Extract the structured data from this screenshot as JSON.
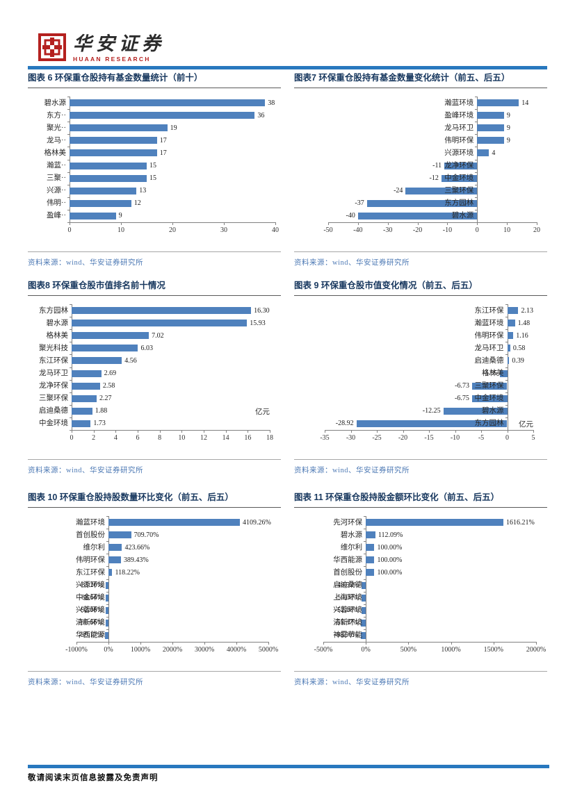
{
  "header": {
    "brand_cn": "华安证券",
    "brand_en": "HUAAN RESEARCH"
  },
  "colors": {
    "accent_bar": "#2878BE",
    "bar_fill": "#4F81BD",
    "title_text": "#17375E",
    "source_text": "#4E7AB5",
    "logo_red": "#B4211F"
  },
  "footer": {
    "disclaimer": "敬请阅读末页信息披露及免责声明"
  },
  "chart_data": [
    {
      "type": "bar",
      "title": "图表 6 环保重仓股持有基金数量统计（前十）",
      "source": "资料来源：wind、华安证券研究所",
      "categories": [
        "碧水源",
        "东方··",
        "聚光··",
        "龙马··",
        "格林美",
        "瀚蓝··",
        "三聚··",
        "兴源··",
        "伟明··",
        "盈峰··"
      ],
      "values": [
        38,
        36,
        19,
        17,
        17,
        15,
        15,
        13,
        12,
        9
      ],
      "value_labels": [
        "38",
        "36",
        "19",
        "17",
        "17",
        "15",
        "15",
        "13",
        "12",
        "9"
      ],
      "xlim": [
        0,
        40
      ],
      "ticks": [
        {
          "v": 0,
          "label": "0"
        },
        {
          "v": 10,
          "label": "10"
        },
        {
          "v": 20,
          "label": "20"
        },
        {
          "v": 30,
          "label": "30"
        },
        {
          "v": 40,
          "label": "40"
        }
      ],
      "grid": false,
      "legend": "none"
    },
    {
      "type": "bar",
      "title": "图表7 环保重仓股持有基金数量变化统计（前五、后五）",
      "source": "资料来源：wind、华安证券研究所",
      "categories": [
        "瀚蓝环境",
        "盈峰环境",
        "龙马环卫",
        "伟明环保",
        "兴源环境",
        "龙净环保",
        "中金环境",
        "三聚环保",
        "东方园林",
        "碧水源"
      ],
      "values": [
        14,
        9,
        9,
        9,
        4,
        -11,
        -12,
        -24,
        -37,
        -40
      ],
      "value_labels": [
        "14",
        "9",
        "9",
        "9",
        "4",
        "-11",
        "-12",
        "-24",
        "-37",
        "-40"
      ],
      "xlim": [
        -50,
        20
      ],
      "ticks": [
        {
          "v": -50,
          "label": "-50"
        },
        {
          "v": -40,
          "label": "-40"
        },
        {
          "v": -30,
          "label": "-30"
        },
        {
          "v": -20,
          "label": "-20"
        },
        {
          "v": -10,
          "label": "-10"
        },
        {
          "v": 0,
          "label": "0"
        },
        {
          "v": 10,
          "label": "10"
        },
        {
          "v": 20,
          "label": "20"
        }
      ],
      "grid": false,
      "legend": "none"
    },
    {
      "type": "bar",
      "title": "图表8 环保重仓股市值排名前十情况",
      "source": "资料来源：wind、华安证券研究所",
      "categories": [
        "东方园林",
        "碧水源",
        "格林美",
        "聚光科技",
        "东江环保",
        "龙马环卫",
        "龙净环保",
        "三聚环保",
        "启迪桑德",
        "中金环境"
      ],
      "values": [
        16.3,
        15.93,
        7.02,
        6.03,
        4.56,
        2.69,
        2.58,
        2.27,
        1.88,
        1.73
      ],
      "value_labels": [
        "16.30",
        "15.93",
        "7.02",
        "6.03",
        "4.56",
        "2.69",
        "2.58",
        "2.27",
        "1.88",
        "1.73"
      ],
      "unit": "亿元",
      "xlim": [
        0,
        18
      ],
      "ticks": [
        {
          "v": 0,
          "label": "0"
        },
        {
          "v": 2,
          "label": "2"
        },
        {
          "v": 4,
          "label": "4"
        },
        {
          "v": 6,
          "label": "6"
        },
        {
          "v": 8,
          "label": "8"
        },
        {
          "v": 10,
          "label": "10"
        },
        {
          "v": 12,
          "label": "12"
        },
        {
          "v": 14,
          "label": "14"
        },
        {
          "v": 16,
          "label": "16"
        },
        {
          "v": 18,
          "label": "18"
        }
      ],
      "grid": false,
      "legend": "none"
    },
    {
      "type": "bar",
      "title": "图表 9 环保重仓股市值变化情况（前五、后五）",
      "source": "资料来源：wind、华安证券研究所",
      "categories": [
        "东江环保",
        "瀚蓝环境",
        "伟明环保",
        "龙马环卫",
        "启迪桑德",
        "格林美",
        "三聚环保",
        "中金环境",
        "碧水源",
        "东方园林"
      ],
      "values": [
        2.13,
        1.48,
        1.16,
        0.58,
        0.39,
        -1.35,
        -6.73,
        -6.75,
        -12.25,
        -28.92
      ],
      "value_labels": [
        "2.13",
        "1.48",
        "1.16",
        "0.58",
        "0.39",
        "-1.35",
        "-6.73",
        "-6.75",
        "-12.25",
        "-28.92"
      ],
      "unit": "亿元",
      "xlim": [
        -35,
        5
      ],
      "ticks": [
        {
          "v": -35,
          "label": "-35"
        },
        {
          "v": -30,
          "label": "-30"
        },
        {
          "v": -25,
          "label": "-25"
        },
        {
          "v": -20,
          "label": "-20"
        },
        {
          "v": -15,
          "label": "-15"
        },
        {
          "v": -10,
          "label": "-10"
        },
        {
          "v": -5,
          "label": "-5"
        },
        {
          "v": 0,
          "label": "0"
        },
        {
          "v": 5,
          "label": "5"
        }
      ],
      "grid": false,
      "legend": "none"
    },
    {
      "type": "bar",
      "title": "图表 10 环保重仓股持股数量环比变化（前五、后五）",
      "source": "资料来源：wind、华安证券研究所",
      "categories": [
        "瀚蓝环境",
        "首创股份",
        "维尔利",
        "伟明环保",
        "东江环保",
        "兴源环境",
        "中金环境",
        "兴蓉环境",
        "清新环境",
        "华西能源"
      ],
      "values": [
        4109.26,
        709.7,
        423.66,
        389.43,
        118.22,
        -85.2,
        -88.64,
        -92.08,
        -95.66,
        -99.17
      ],
      "value_labels": [
        "4109.26%",
        "709.70%",
        "423.66%",
        "389.43%",
        "118.22%",
        "-85.20%",
        "-88.64%",
        "-92.08%",
        "-95.66%",
        "-99.17%"
      ],
      "xlim": [
        -1000,
        5000
      ],
      "ticks": [
        {
          "v": -1000,
          "label": "-1000%"
        },
        {
          "v": 0,
          "label": "0%"
        },
        {
          "v": 1000,
          "label": "1000%"
        },
        {
          "v": 2000,
          "label": "2000%"
        },
        {
          "v": 3000,
          "label": "3000%"
        },
        {
          "v": 4000,
          "label": "4000%"
        },
        {
          "v": 5000,
          "label": "5000%"
        }
      ],
      "grid": false,
      "legend": "none"
    },
    {
      "type": "bar",
      "title": "图表 11 环保重仓股持股金额环比变化（前五、后五）",
      "source": "资料来源：wind、华安证券研究所",
      "categories": [
        "先河环保",
        "碧水源",
        "维尔利",
        "华西能源",
        "首创股份",
        "启迪桑德",
        "上海环境",
        "兴蓉环境",
        "清新环境",
        "神雾节能"
      ],
      "values": [
        1616.21,
        112.09,
        100.0,
        100.0,
        100.0,
        -48.53,
        -50.0,
        -52.16,
        -55.37,
        -58.9
      ],
      "value_labels": [
        "1616.21%",
        "112.09%",
        "100.00%",
        "100.00%",
        "100.00%",
        "-48.53%",
        "-50.00%",
        "-52.16%",
        "-55.37%",
        "-58.90%"
      ],
      "xlim": [
        -500,
        2000
      ],
      "ticks": [
        {
          "v": -500,
          "label": "-500%"
        },
        {
          "v": 0,
          "label": "0%"
        },
        {
          "v": 500,
          "label": "500%"
        },
        {
          "v": 1000,
          "label": "1000%"
        },
        {
          "v": 1500,
          "label": "1500%"
        },
        {
          "v": 2000,
          "label": "2000%"
        }
      ],
      "grid": false,
      "legend": "none"
    }
  ]
}
